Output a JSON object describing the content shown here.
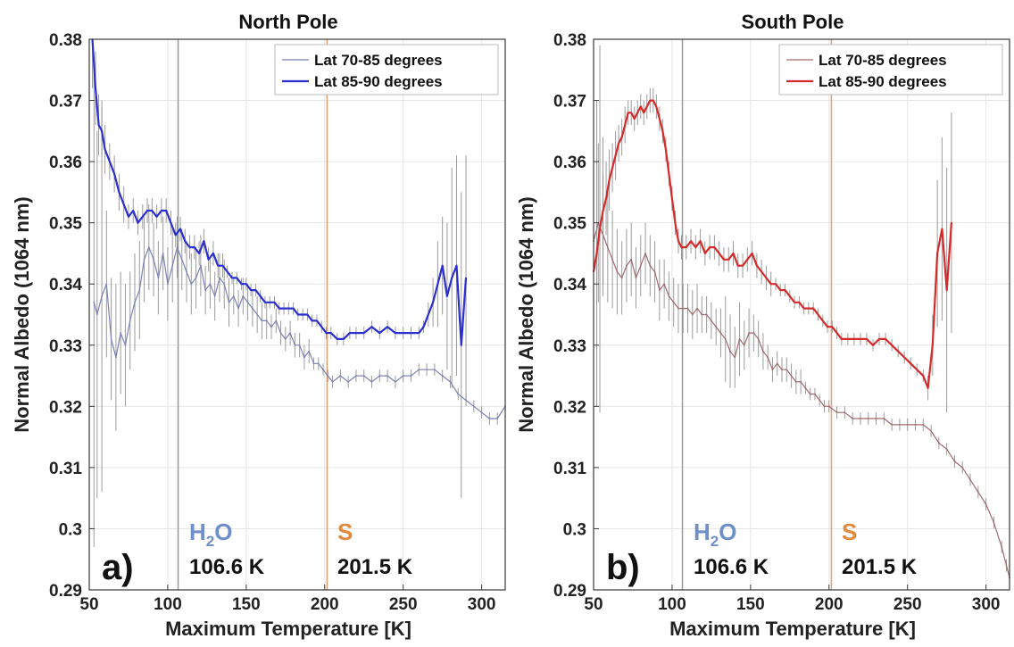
{
  "chart_data": [
    {
      "type": "line",
      "title": "North Pole",
      "panel_label": "a)",
      "xlabel": "Maximum Temperature [K]",
      "ylabel": "Normal Albedo (1064 nm)",
      "xlim": [
        50,
        315
      ],
      "ylim": [
        0.29,
        0.38
      ],
      "xticks": [
        "50",
        "100",
        "150",
        "200",
        "250",
        "300"
      ],
      "yticks": [
        "0.29",
        "0.3",
        "0.31",
        "0.32",
        "0.33",
        "0.34",
        "0.35",
        "0.36",
        "0.37",
        "0.38"
      ],
      "grid": true,
      "legend_position": "top-right",
      "vertical_lines": [
        {
          "x": 106.6,
          "color": "#9a9a9a",
          "species": "H",
          "subscript": "2",
          "species_tail": "O",
          "label_color": "#6f8fc9",
          "value_label": "106.6 K"
        },
        {
          "x": 201.5,
          "color": "#e4a06e",
          "species": "S",
          "subscript": "",
          "species_tail": "",
          "label_color": "#e28a3c",
          "value_label": "201.5 K"
        }
      ],
      "series": [
        {
          "name": "Lat 70-85 degrees",
          "color": "#7c82b5",
          "stroke_width": 1.2,
          "x": [
            53,
            55,
            58,
            61,
            64,
            67,
            70,
            73,
            76,
            79,
            82,
            85,
            88,
            91,
            94,
            97,
            100,
            103,
            106,
            109,
            112,
            115,
            118,
            121,
            124,
            127,
            130,
            133,
            136,
            139,
            142,
            145,
            148,
            151,
            154,
            157,
            160,
            163,
            166,
            169,
            172,
            175,
            178,
            181,
            184,
            187,
            190,
            193,
            196,
            199,
            202,
            205,
            210,
            215,
            220,
            225,
            230,
            235,
            240,
            245,
            250,
            255,
            260,
            265,
            270,
            275,
            280,
            285,
            290,
            295,
            300,
            305,
            310,
            315
          ],
          "values": [
            0.337,
            0.335,
            0.338,
            0.34,
            0.331,
            0.328,
            0.332,
            0.33,
            0.334,
            0.337,
            0.339,
            0.344,
            0.346,
            0.344,
            0.341,
            0.345,
            0.34,
            0.343,
            0.346,
            0.344,
            0.342,
            0.34,
            0.341,
            0.343,
            0.339,
            0.34,
            0.338,
            0.341,
            0.34,
            0.337,
            0.338,
            0.336,
            0.338,
            0.337,
            0.336,
            0.335,
            0.334,
            0.334,
            0.333,
            0.334,
            0.332,
            0.331,
            0.332,
            0.33,
            0.33,
            0.328,
            0.329,
            0.327,
            0.327,
            0.326,
            0.325,
            0.324,
            0.325,
            0.324,
            0.325,
            0.325,
            0.324,
            0.325,
            0.325,
            0.324,
            0.325,
            0.325,
            0.326,
            0.326,
            0.326,
            0.325,
            0.324,
            0.322,
            0.321,
            0.32,
            0.319,
            0.318,
            0.318,
            0.32
          ],
          "errors": [
            0.04,
            0.03,
            0.032,
            0.012,
            0.01,
            0.012,
            0.01,
            0.01,
            0.008,
            0.008,
            0.008,
            0.007,
            0.007,
            0.006,
            0.006,
            0.006,
            0.006,
            0.006,
            0.005,
            0.005,
            0.005,
            0.005,
            0.005,
            0.005,
            0.004,
            0.004,
            0.004,
            0.004,
            0.004,
            0.004,
            0.003,
            0.003,
            0.003,
            0.003,
            0.003,
            0.003,
            0.003,
            0.003,
            0.002,
            0.002,
            0.002,
            0.002,
            0.002,
            0.002,
            0.002,
            0.002,
            0.002,
            0.001,
            0.001,
            0.001,
            0.001,
            0.001,
            0.001,
            0.001,
            0.001,
            0.001,
            0.001,
            0.001,
            0.001,
            0.001,
            0.001,
            0.001,
            0.001,
            0.001,
            0.001,
            0.001,
            0.001,
            0.001,
            0.001,
            0.001,
            0.001,
            0.001,
            0.001,
            0.001
          ]
        },
        {
          "name": "Lat 85-90 degrees",
          "color": "#2b2fd0",
          "stroke_width": 2.2,
          "x": [
            52,
            54,
            56,
            58,
            60,
            63,
            66,
            69,
            72,
            75,
            78,
            81,
            84,
            87,
            90,
            93,
            96,
            99,
            102,
            105,
            108,
            111,
            114,
            117,
            120,
            123,
            126,
            129,
            132,
            135,
            138,
            141,
            144,
            147,
            150,
            153,
            156,
            159,
            162,
            165,
            168,
            171,
            174,
            177,
            180,
            183,
            186,
            189,
            192,
            195,
            198,
            201,
            204,
            208,
            212,
            216,
            220,
            225,
            230,
            235,
            240,
            245,
            250,
            255,
            260,
            263,
            266,
            269,
            272,
            275,
            278,
            281,
            284,
            287,
            290
          ],
          "values": [
            0.38,
            0.372,
            0.366,
            0.365,
            0.362,
            0.36,
            0.358,
            0.355,
            0.353,
            0.351,
            0.352,
            0.35,
            0.351,
            0.352,
            0.352,
            0.351,
            0.352,
            0.352,
            0.35,
            0.348,
            0.349,
            0.347,
            0.346,
            0.346,
            0.345,
            0.347,
            0.344,
            0.345,
            0.343,
            0.343,
            0.342,
            0.341,
            0.341,
            0.34,
            0.34,
            0.339,
            0.339,
            0.338,
            0.337,
            0.337,
            0.337,
            0.336,
            0.336,
            0.336,
            0.336,
            0.335,
            0.335,
            0.335,
            0.334,
            0.334,
            0.333,
            0.332,
            0.332,
            0.331,
            0.331,
            0.332,
            0.332,
            0.332,
            0.333,
            0.332,
            0.333,
            0.332,
            0.332,
            0.332,
            0.332,
            0.333,
            0.335,
            0.337,
            0.34,
            0.343,
            0.338,
            0.341,
            0.343,
            0.33,
            0.341
          ],
          "errors": [
            0.008,
            0.006,
            0.005,
            0.004,
            0.004,
            0.003,
            0.003,
            0.003,
            0.003,
            0.002,
            0.002,
            0.002,
            0.002,
            0.002,
            0.002,
            0.002,
            0.002,
            0.002,
            0.002,
            0.002,
            0.002,
            0.002,
            0.002,
            0.002,
            0.002,
            0.002,
            0.002,
            0.002,
            0.002,
            0.002,
            0.001,
            0.001,
            0.001,
            0.001,
            0.001,
            0.001,
            0.001,
            0.001,
            0.001,
            0.001,
            0.001,
            0.001,
            0.001,
            0.001,
            0.001,
            0.001,
            0.001,
            0.001,
            0.001,
            0.001,
            0.001,
            0.001,
            0.001,
            0.001,
            0.001,
            0.001,
            0.001,
            0.001,
            0.001,
            0.001,
            0.001,
            0.001,
            0.001,
            0.001,
            0.001,
            0.001,
            0.002,
            0.004,
            0.007,
            0.008,
            0.012,
            0.018,
            0.018,
            0.025,
            0.02
          ]
        }
      ]
    },
    {
      "type": "line",
      "title": "South Pole",
      "panel_label": "b)",
      "xlabel": "Maximum Temperature [K]",
      "ylabel": "Normal Albedo (1064 nm)",
      "xlim": [
        50,
        315
      ],
      "ylim": [
        0.29,
        0.38
      ],
      "xticks": [
        "50",
        "100",
        "150",
        "200",
        "250",
        "300"
      ],
      "yticks": [
        "0.29",
        "0.3",
        "0.31",
        "0.32",
        "0.33",
        "0.34",
        "0.35",
        "0.36",
        "0.37",
        "0.38"
      ],
      "grid": true,
      "legend_position": "top-right",
      "vertical_lines": [
        {
          "x": 106.6,
          "color": "#9a9a9a",
          "species": "H",
          "subscript": "2",
          "species_tail": "O",
          "label_color": "#6f8fc9",
          "value_label": "106.6 K"
        },
        {
          "x": 201.5,
          "color": "#e4a06e",
          "species": "S",
          "subscript": "",
          "species_tail": "",
          "label_color": "#e28a3c",
          "value_label": "201.5 K"
        }
      ],
      "series": [
        {
          "name": "Lat 70-85 degrees",
          "color": "#a06a6f",
          "stroke_width": 1.2,
          "x": [
            50,
            53,
            56,
            59,
            62,
            65,
            68,
            71,
            74,
            77,
            80,
            83,
            86,
            89,
            92,
            95,
            98,
            101,
            104,
            107,
            110,
            113,
            116,
            119,
            122,
            125,
            128,
            131,
            134,
            137,
            140,
            143,
            146,
            149,
            152,
            155,
            158,
            161,
            164,
            167,
            170,
            173,
            176,
            179,
            182,
            185,
            188,
            191,
            194,
            197,
            200,
            205,
            210,
            215,
            220,
            225,
            230,
            235,
            240,
            245,
            250,
            255,
            260,
            265,
            270,
            275,
            280,
            285,
            290,
            295,
            300,
            305,
            310,
            313,
            315
          ],
          "values": [
            0.347,
            0.35,
            0.348,
            0.346,
            0.344,
            0.342,
            0.341,
            0.343,
            0.344,
            0.341,
            0.343,
            0.345,
            0.343,
            0.342,
            0.339,
            0.34,
            0.338,
            0.337,
            0.336,
            0.336,
            0.336,
            0.335,
            0.336,
            0.335,
            0.335,
            0.334,
            0.333,
            0.332,
            0.331,
            0.329,
            0.328,
            0.331,
            0.33,
            0.332,
            0.332,
            0.331,
            0.329,
            0.328,
            0.326,
            0.327,
            0.326,
            0.326,
            0.325,
            0.324,
            0.324,
            0.323,
            0.322,
            0.322,
            0.321,
            0.32,
            0.32,
            0.319,
            0.319,
            0.318,
            0.318,
            0.318,
            0.318,
            0.318,
            0.317,
            0.317,
            0.317,
            0.317,
            0.317,
            0.316,
            0.314,
            0.313,
            0.311,
            0.31,
            0.308,
            0.306,
            0.304,
            0.301,
            0.297,
            0.294,
            0.292
          ],
          "errors": [
            0.015,
            0.013,
            0.01,
            0.009,
            0.008,
            0.007,
            0.006,
            0.006,
            0.006,
            0.005,
            0.005,
            0.005,
            0.005,
            0.005,
            0.005,
            0.004,
            0.004,
            0.004,
            0.004,
            0.004,
            0.004,
            0.004,
            0.004,
            0.003,
            0.003,
            0.003,
            0.003,
            0.004,
            0.007,
            0.006,
            0.005,
            0.006,
            0.004,
            0.004,
            0.003,
            0.003,
            0.003,
            0.002,
            0.002,
            0.002,
            0.002,
            0.002,
            0.002,
            0.002,
            0.002,
            0.001,
            0.001,
            0.001,
            0.001,
            0.001,
            0.001,
            0.001,
            0.001,
            0.001,
            0.001,
            0.001,
            0.001,
            0.001,
            0.001,
            0.001,
            0.001,
            0.001,
            0.001,
            0.001,
            0.001,
            0.001,
            0.001,
            0.001,
            0.001,
            0.001,
            0.001,
            0.001,
            0.001,
            0.001,
            0.001
          ]
        },
        {
          "name": "Lat 85-90 degrees",
          "color": "#d42a2a",
          "stroke_width": 2.2,
          "x": [
            50,
            52,
            54,
            56,
            58,
            60,
            62,
            64,
            66,
            68,
            70,
            72,
            74,
            76,
            78,
            80,
            82,
            84,
            86,
            88,
            90,
            92,
            94,
            96,
            98,
            100,
            102,
            104,
            106,
            109,
            112,
            115,
            118,
            121,
            124,
            127,
            130,
            133,
            136,
            139,
            142,
            145,
            148,
            151,
            154,
            157,
            160,
            163,
            166,
            169,
            172,
            175,
            178,
            181,
            184,
            187,
            190,
            193,
            196,
            199,
            202,
            205,
            208,
            212,
            216,
            220,
            224,
            228,
            232,
            236,
            240,
            244,
            248,
            252,
            256,
            260,
            263,
            266,
            269,
            272,
            275,
            278
          ],
          "values": [
            0.342,
            0.345,
            0.349,
            0.352,
            0.354,
            0.357,
            0.359,
            0.361,
            0.363,
            0.364,
            0.366,
            0.368,
            0.368,
            0.367,
            0.368,
            0.369,
            0.368,
            0.369,
            0.37,
            0.37,
            0.369,
            0.367,
            0.365,
            0.362,
            0.358,
            0.354,
            0.35,
            0.347,
            0.346,
            0.346,
            0.347,
            0.346,
            0.347,
            0.345,
            0.346,
            0.346,
            0.345,
            0.344,
            0.344,
            0.345,
            0.343,
            0.343,
            0.344,
            0.345,
            0.343,
            0.342,
            0.341,
            0.34,
            0.34,
            0.339,
            0.339,
            0.338,
            0.337,
            0.337,
            0.336,
            0.336,
            0.336,
            0.335,
            0.334,
            0.333,
            0.333,
            0.332,
            0.331,
            0.331,
            0.331,
            0.331,
            0.331,
            0.33,
            0.331,
            0.331,
            0.33,
            0.329,
            0.328,
            0.327,
            0.326,
            0.325,
            0.323,
            0.33,
            0.345,
            0.349,
            0.339,
            0.35
          ],
          "errors": [
            0.02,
            0.025,
            0.03,
            0.012,
            0.006,
            0.005,
            0.004,
            0.004,
            0.003,
            0.003,
            0.003,
            0.002,
            0.002,
            0.002,
            0.002,
            0.002,
            0.002,
            0.002,
            0.002,
            0.002,
            0.002,
            0.002,
            0.002,
            0.002,
            0.002,
            0.002,
            0.002,
            0.002,
            0.002,
            0.002,
            0.002,
            0.002,
            0.002,
            0.002,
            0.002,
            0.002,
            0.002,
            0.002,
            0.002,
            0.002,
            0.002,
            0.002,
            0.002,
            0.002,
            0.002,
            0.002,
            0.002,
            0.002,
            0.001,
            0.001,
            0.001,
            0.001,
            0.001,
            0.001,
            0.001,
            0.001,
            0.001,
            0.001,
            0.001,
            0.001,
            0.001,
            0.001,
            0.001,
            0.001,
            0.001,
            0.001,
            0.001,
            0.001,
            0.001,
            0.001,
            0.001,
            0.001,
            0.001,
            0.001,
            0.001,
            0.001,
            0.002,
            0.005,
            0.012,
            0.015,
            0.02,
            0.018
          ]
        }
      ]
    }
  ]
}
